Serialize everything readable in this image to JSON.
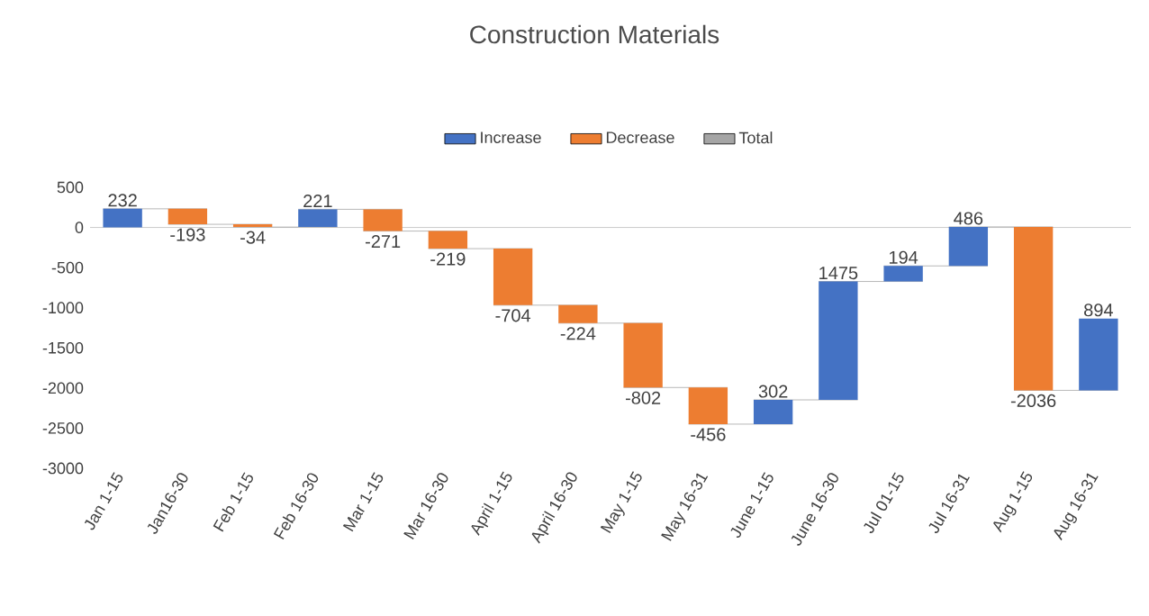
{
  "chart_data": {
    "type": "bar",
    "title": "Construction Materials",
    "categories": [
      "Jan 1-15",
      "Jan16-30",
      "Feb 1-15",
      "Feb 16-30",
      "Mar 1-15",
      "Mar 16-30",
      "April 1-15",
      "April 16-30",
      "May 1-15",
      "May 16-31",
      "June 1-15",
      "June 16-30",
      "Jul 01-15",
      "Jul 16-31",
      "Aug 1-15",
      "Aug 16-31"
    ],
    "series": [
      {
        "name": "Increase",
        "color": "#4472c4",
        "values": [
          232,
          null,
          null,
          221,
          null,
          null,
          null,
          null,
          null,
          null,
          302,
          1475,
          194,
          486,
          null,
          894
        ],
        "base": [
          0,
          null,
          null,
          5,
          null,
          null,
          null,
          null,
          null,
          null,
          -2450,
          -2148,
          -673,
          -479,
          null,
          -2029
        ]
      },
      {
        "name": "Decrease",
        "color": "#ed7d31",
        "values": [
          null,
          -193,
          -34,
          null,
          -271,
          -219,
          -704,
          -224,
          -802,
          -456,
          null,
          null,
          null,
          null,
          -2036,
          null
        ],
        "base": [
          null,
          232,
          39,
          null,
          226,
          -45,
          -264,
          -968,
          -1192,
          -1994,
          null,
          null,
          null,
          null,
          7,
          null
        ]
      },
      {
        "name": "Total",
        "color": "#a5a5a5",
        "values": [
          null,
          null,
          null,
          null,
          null,
          null,
          null,
          null,
          null,
          null,
          null,
          null,
          null,
          null,
          null,
          null
        ]
      }
    ],
    "ylim": [
      -3000,
      500
    ],
    "yticks": [
      -3000,
      -2500,
      -2000,
      -1500,
      -1000,
      -500,
      0,
      500
    ],
    "data_labels": true,
    "legend": "top"
  }
}
